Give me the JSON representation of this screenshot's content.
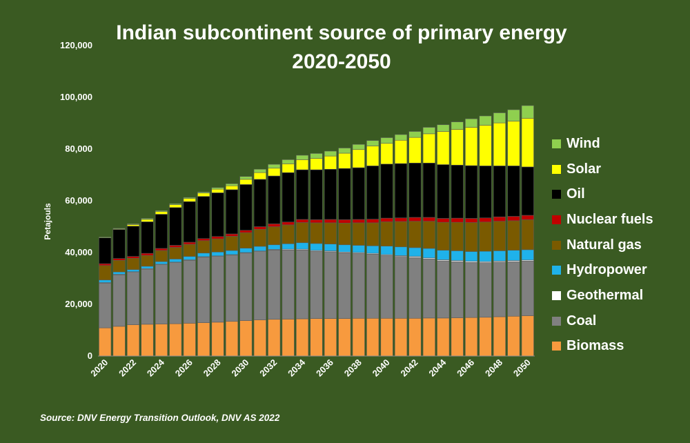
{
  "title_line1": "Indian subcontinent source of primary energy",
  "title_line2": "2020-2050",
  "source": "Source: DNV Energy Transition Outlook, DNV AS 2022",
  "chart_data": {
    "type": "bar",
    "stacked": true,
    "title": "Indian subcontinent source of primary energy 2020-2050",
    "ylabel": "Petajouls",
    "xlabel": "",
    "ylim": [
      0,
      120000
    ],
    "yticks": [
      0,
      20000,
      40000,
      60000,
      80000,
      100000,
      120000
    ],
    "ytick_labels": [
      "0",
      "20,000",
      "40,000",
      "60,000",
      "80,000",
      "100,000",
      "120,000"
    ],
    "xtick_labels": [
      "2020",
      "2022",
      "2024",
      "2026",
      "2028",
      "2030",
      "2032",
      "2034",
      "2036",
      "2038",
      "2040",
      "2042",
      "2044",
      "2046",
      "2048",
      "2050"
    ],
    "legend_position": "right",
    "categories": [
      "2020",
      "2021",
      "2022",
      "2023",
      "2024",
      "2025",
      "2026",
      "2027",
      "2028",
      "2029",
      "2030",
      "2031",
      "2032",
      "2033",
      "2034",
      "2035",
      "2036",
      "2037",
      "2038",
      "2039",
      "2040",
      "2041",
      "2042",
      "2043",
      "2044",
      "2045",
      "2046",
      "2047",
      "2048",
      "2049",
      "2050"
    ],
    "series": [
      {
        "name": "Biomass",
        "color": "#f79a3e",
        "values": [
          10900,
          11500,
          12100,
          12300,
          12400,
          12500,
          12700,
          12900,
          13100,
          13400,
          13700,
          14000,
          14200,
          14300,
          14400,
          14500,
          14500,
          14500,
          14600,
          14600,
          14600,
          14600,
          14600,
          14700,
          14700,
          14800,
          14900,
          15000,
          15200,
          15400,
          15600
        ]
      },
      {
        "name": "Coal",
        "color": "#808080",
        "values": [
          17300,
          19900,
          20300,
          21300,
          22900,
          23600,
          24300,
          25300,
          25400,
          25600,
          26100,
          26400,
          26800,
          26700,
          26600,
          26000,
          25800,
          25400,
          25100,
          24800,
          24300,
          23900,
          23500,
          22800,
          22100,
          21700,
          21300,
          21100,
          21100,
          21100,
          21100
        ]
      },
      {
        "name": "Geothermal",
        "color": "#ffffff",
        "values": [
          200,
          200,
          200,
          200,
          200,
          200,
          200,
          200,
          200,
          200,
          200,
          200,
          200,
          300,
          300,
          300,
          300,
          300,
          300,
          300,
          300,
          300,
          400,
          400,
          400,
          400,
          400,
          400,
          400,
          400,
          400
        ]
      },
      {
        "name": "Hydropower",
        "color": "#1fb2ea",
        "values": [
          1000,
          900,
          800,
          900,
          1000,
          1200,
          1300,
          1400,
          1500,
          1600,
          1700,
          1800,
          1800,
          2100,
          2500,
          2700,
          2700,
          2800,
          2800,
          2900,
          3300,
          3400,
          3400,
          3700,
          3700,
          3800,
          3800,
          4000,
          4000,
          4000,
          4000
        ]
      },
      {
        "name": "Natural gas",
        "color": "#7a5a00",
        "values": [
          5600,
          4500,
          4400,
          4200,
          4300,
          4500,
          4700,
          4800,
          5100,
          5500,
          6000,
          6600,
          7000,
          7300,
          7800,
          8000,
          8200,
          8400,
          8700,
          8900,
          9400,
          9800,
          10200,
          10500,
          10800,
          11000,
          11200,
          11300,
          11400,
          11400,
          11600
        ]
      },
      {
        "name": "Nuclear fuels",
        "color": "#c00000",
        "values": [
          700,
          700,
          700,
          800,
          800,
          800,
          800,
          800,
          900,
          900,
          900,
          1000,
          1100,
          1100,
          1200,
          1200,
          1300,
          1300,
          1300,
          1400,
          1400,
          1400,
          1500,
          1500,
          1500,
          1600,
          1600,
          1600,
          1700,
          1700,
          1700
        ]
      },
      {
        "name": "Oil",
        "color": "#000000",
        "values": [
          10000,
          11200,
          11700,
          12200,
          13200,
          14600,
          15700,
          16300,
          16900,
          17100,
          17700,
          18300,
          18500,
          19100,
          19200,
          19300,
          19400,
          19800,
          20000,
          20600,
          20900,
          21000,
          21000,
          21000,
          20800,
          20500,
          20400,
          20100,
          19700,
          19500,
          18700
        ]
      },
      {
        "name": "Solar",
        "color": "#ffff00",
        "values": [
          0,
          200,
          600,
          900,
          1000,
          1100,
          1200,
          1300,
          1400,
          1500,
          2000,
          2600,
          3000,
          3400,
          3900,
          4400,
          5100,
          5900,
          7000,
          7700,
          8000,
          9000,
          9900,
          11300,
          12800,
          13800,
          14800,
          15700,
          16600,
          17300,
          18800
        ]
      },
      {
        "name": "Wind",
        "color": "#8fcf4f",
        "values": [
          300,
          300,
          300,
          400,
          400,
          400,
          400,
          400,
          600,
          800,
          1100,
          1300,
          1500,
          1600,
          1700,
          1900,
          1900,
          2000,
          2000,
          2100,
          2200,
          2200,
          2300,
          2500,
          2600,
          2900,
          3300,
          3600,
          3900,
          4400,
          4900
        ]
      }
    ]
  }
}
